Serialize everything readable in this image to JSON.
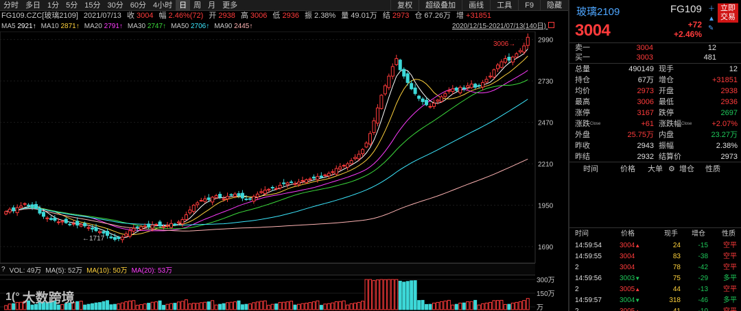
{
  "toolbar": {
    "periods": [
      "分时",
      "多日",
      "1分",
      "5分",
      "15分",
      "30分",
      "60分",
      "4小时",
      "日",
      "周",
      "月",
      "更多"
    ],
    "active_period": "日",
    "right_items": [
      "复权",
      "超级叠加",
      "画线",
      "工具",
      "F9",
      "隐藏"
    ]
  },
  "info": {
    "symbol": "FG109.CZC[玻璃2109]",
    "date": "2021/07/13",
    "close_label": "收",
    "close": "3004",
    "change_label": "幅",
    "change": "2.46%(72)",
    "open_label": "开",
    "open": "2938",
    "high_label": "高",
    "high": "3006",
    "low_label": "低",
    "low": "2936",
    "amp_label": "振",
    "amp": "2.38%",
    "vol_label": "量",
    "vol": "49.01万",
    "settle_label": "结",
    "settle": "2973",
    "oi_label": "仓",
    "oi": "67.26万",
    "oi_chg_label": "增",
    "oi_chg": "+31851"
  },
  "ma_line": {
    "items": [
      {
        "label": "MA5",
        "value": "2921↑",
        "color": "#ffffff"
      },
      {
        "label": "MA10",
        "value": "2871↑",
        "color": "#ffd23c"
      },
      {
        "label": "MA20",
        "value": "2791↑",
        "color": "#ff3cff"
      },
      {
        "label": "MA30",
        "value": "2747↑",
        "color": "#3cdc3c"
      },
      {
        "label": "MA50",
        "value": "2706↑",
        "color": "#3ce8ff"
      },
      {
        "label": "MA90",
        "value": "2445↑",
        "color": "#ffb4b4"
      }
    ],
    "range": "2020/12/15-2021/07/13(140日)"
  },
  "chart_data": {
    "type": "candlestick",
    "y_ticks": [
      2990,
      2730,
      2470,
      2210,
      1950,
      1690
    ],
    "ylim": [
      1630,
      3040
    ],
    "high_marker": "3006",
    "low_marker": "1717",
    "vol_ticks": [
      "300万",
      "150万",
      "万"
    ],
    "closes": [
      1910,
      1925,
      1915,
      1935,
      1945,
      1960,
      1950,
      1940,
      1930,
      1900,
      1880,
      1870,
      1860,
      1855,
      1845,
      1850,
      1840,
      1830,
      1835,
      1825,
      1830,
      1820,
      1810,
      1800,
      1790,
      1785,
      1775,
      1760,
      1745,
      1735,
      1740,
      1750,
      1770,
      1790,
      1805,
      1810,
      1815,
      1820,
      1815,
      1825,
      1830,
      1820,
      1815,
      1825,
      1835,
      1830,
      1845,
      1860,
      1890,
      1920,
      1950,
      1965,
      1980,
      1990,
      1985,
      2000,
      2010,
      2000,
      1990,
      2005,
      2015,
      2020,
      2010,
      1995,
      1985,
      1990,
      2005,
      2020,
      2035,
      2045,
      2050,
      2060,
      2055,
      2075,
      2085,
      2090,
      2095,
      2085,
      2095,
      2105,
      2110,
      2115,
      2120,
      2130,
      2125,
      2140,
      2150,
      2160,
      2180,
      2190,
      2200,
      2210,
      2230,
      2250,
      2270,
      2300,
      2340,
      2400,
      2480,
      2560,
      2640,
      2700,
      2760,
      2820,
      2870,
      2800,
      2760,
      2720,
      2680,
      2650,
      2620,
      2600,
      2580,
      2570,
      2590,
      2610,
      2630,
      2650,
      2670,
      2680,
      2670,
      2690,
      2680,
      2700,
      2710,
      2690,
      2700,
      2720,
      2740,
      2760,
      2800,
      2830,
      2850,
      2870,
      2860,
      2880,
      2900,
      2920,
      2950,
      3004
    ]
  },
  "volume_bar": {
    "title": "VOL: 49万",
    "ma5": "MA(5): 52万",
    "ma10": "MA(10): 50万",
    "ma20": "MA(20): 53万"
  },
  "watermark": {
    "logo": "1(°",
    "text": "大数跨境"
  },
  "side": {
    "title": "玻璃2109",
    "code": "FG109",
    "price": "3004",
    "change": "+72",
    "change_pct": "+2.46%",
    "trade_button": "立即交易",
    "order_book": [
      {
        "label": "卖一",
        "price": "3004",
        "vol": "12"
      },
      {
        "label": "买一",
        "price": "3003",
        "vol": "481"
      }
    ],
    "stats": [
      {
        "l1": "总量",
        "v1": "490149",
        "c1": "#e0e0e0",
        "l2": "现手",
        "v2": "12",
        "c2": "#e0e0e0"
      },
      {
        "l1": "持仓",
        "v1": "67万",
        "c1": "#e0e0e0",
        "l2": "增仓",
        "v2": "+31851",
        "c2": "#ff3b3b"
      },
      {
        "l1": "均价",
        "v1": "2973",
        "c1": "#ff3b3b",
        "l2": "开盘",
        "v2": "2938",
        "c2": "#ff3b3b"
      },
      {
        "l1": "最高",
        "v1": "3006",
        "c1": "#ff3b3b",
        "l2": "最低",
        "v2": "2936",
        "c2": "#ff3b3b"
      },
      {
        "l1": "涨停",
        "v1": "3167",
        "c1": "#ff3b3b",
        "l2": "跌停",
        "v2": "2697",
        "c2": "#1ec85a"
      },
      {
        "l1": "涨跌",
        "sup1": "Close",
        "v1": "+61",
        "c1": "#ff3b3b",
        "l2": "涨跌幅",
        "sup2": "Close",
        "v2": "+2.07%",
        "c2": "#ff3b3b"
      },
      {
        "l1": "外盘",
        "v1": "25.75万",
        "c1": "#ff3b3b",
        "l2": "内盘",
        "v2": "23.27万",
        "c2": "#1ec85a"
      },
      {
        "l1": "昨收",
        "v1": "2943",
        "c1": "#e0e0e0",
        "l2": "振幅",
        "v2": "2.38%",
        "c2": "#e0e0e0"
      },
      {
        "l1": "昨结",
        "v1": "2932",
        "c1": "#e0e0e0",
        "l2": "结算价",
        "v2": "2973",
        "c2": "#e0e0e0"
      }
    ],
    "big_order_headers": [
      "时间",
      "价格",
      "大单",
      "增仓",
      "性质"
    ],
    "tick_headers": [
      "时间",
      "价格",
      "现手",
      "增仓",
      "性质"
    ],
    "ticks": [
      {
        "time": "14:59:54",
        "price": "3004",
        "dir": "up",
        "vol": "24",
        "chg": "-15",
        "nature": "空平",
        "nc": "#ff3b3b"
      },
      {
        "time": "14:59:55",
        "price": "3004",
        "dir": "",
        "vol": "83",
        "chg": "-38",
        "nature": "空平",
        "nc": "#ff3b3b"
      },
      {
        "time": "2",
        "price": "3004",
        "dir": "",
        "vol": "78",
        "chg": "-42",
        "nature": "空平",
        "nc": "#ff3b3b"
      },
      {
        "time": "14:59:56",
        "price": "3003",
        "dir": "down",
        "vol": "75",
        "chg": "-29",
        "nature": "多平",
        "nc": "#1ec85a"
      },
      {
        "time": "2",
        "price": "3005",
        "dir": "up",
        "vol": "44",
        "chg": "-13",
        "nature": "空平",
        "nc": "#ff3b3b"
      },
      {
        "time": "14:59:57",
        "price": "3004",
        "dir": "down",
        "vol": "318",
        "chg": "-46",
        "nature": "多平",
        "nc": "#1ec85a"
      },
      {
        "time": "2",
        "price": "3005",
        "dir": "up",
        "vol": "41",
        "chg": "-10",
        "nature": "空平",
        "nc": "#ff3b3b"
      }
    ]
  }
}
